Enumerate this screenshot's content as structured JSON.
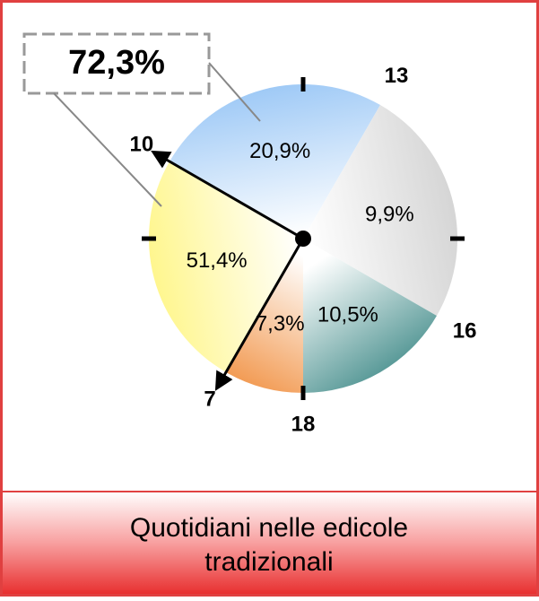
{
  "chart_data": {
    "type": "pie",
    "title": "Quotidiani nelle edicole tradizionali",
    "hours": [
      10,
      13,
      16,
      18,
      7
    ],
    "values": [
      20.9,
      9.9,
      10.5,
      7.3,
      51.4
    ],
    "value_labels": [
      "20,9%",
      "9,9%",
      "10,5%",
      "7,3%",
      "51,4%"
    ],
    "colors": [
      "#9cc8f6",
      "#d4d4d4",
      "#3f8a88",
      "#f29a52",
      "#fff68a"
    ],
    "annotation": {
      "value": 72.3,
      "label": "72,3%"
    }
  }
}
